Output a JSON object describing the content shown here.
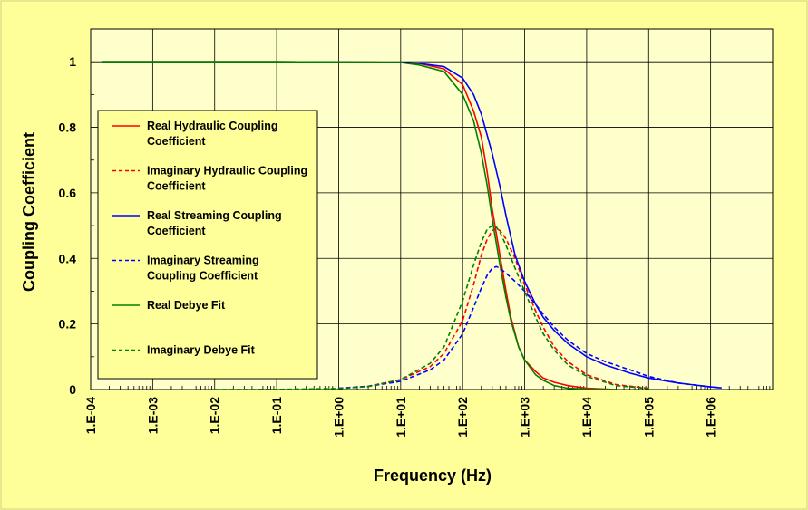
{
  "chart_data": {
    "type": "line",
    "title": "",
    "xlabel": "Frequency (Hz)",
    "ylabel": "Coupling Coefficient",
    "x_scale": "log",
    "xlim": [
      0.0001,
      10000000
    ],
    "ylim": [
      0,
      1.1
    ],
    "x_ticks": [
      0.0001,
      0.001,
      0.01,
      0.1,
      1,
      10,
      100,
      1000,
      10000,
      100000,
      1000000
    ],
    "x_tick_labels": [
      "1.E-04",
      "1.E-03",
      "1.E-02",
      "1.E-01",
      "1.E+00",
      "1.E+01",
      "1.E+02",
      "1.E+03",
      "1.E+04",
      "1.E+05",
      "1.E+06"
    ],
    "y_ticks": [
      0,
      0.2,
      0.4,
      0.6,
      0.8,
      1
    ],
    "y_tick_labels": [
      "0",
      "0.2",
      "0.4",
      "0.6",
      "0.8",
      "1"
    ],
    "grid": true,
    "legend_position": "left",
    "series": [
      {
        "name": "Real Hydraulic Coupling Coefficient",
        "color": "#ff0000",
        "dash": "solid",
        "x": [
          0.00015,
          0.001,
          0.1,
          10,
          20,
          50,
          100,
          150,
          200,
          250,
          300,
          400,
          500,
          600,
          800,
          1000,
          1500,
          2000,
          3000,
          5000,
          10000,
          30000
        ],
        "y": [
          1,
          1,
          1,
          0.998,
          0.995,
          0.978,
          0.93,
          0.85,
          0.77,
          0.66,
          0.55,
          0.41,
          0.3,
          0.22,
          0.13,
          0.09,
          0.055,
          0.035,
          0.022,
          0.012,
          0.004,
          0
        ]
      },
      {
        "name": "Imaginary Hydraulic Coupling Coefficient",
        "color": "#ff0000",
        "dash": "dashed",
        "x": [
          1,
          3,
          10,
          30,
          50,
          100,
          150,
          200,
          250,
          300,
          350,
          400,
          500,
          700,
          1000,
          1500,
          2000,
          3000,
          5000,
          10000,
          30000,
          100000
        ],
        "y": [
          0.004,
          0.01,
          0.03,
          0.07,
          0.11,
          0.21,
          0.32,
          0.41,
          0.46,
          0.485,
          0.49,
          0.485,
          0.46,
          0.4,
          0.32,
          0.24,
          0.19,
          0.13,
          0.085,
          0.045,
          0.015,
          0.004
        ]
      },
      {
        "name": "Real Streaming Coupling Coefficient",
        "color": "#0000ff",
        "dash": "solid",
        "x": [
          0.00015,
          0.001,
          0.1,
          10,
          20,
          50,
          100,
          150,
          200,
          300,
          400,
          500,
          700,
          1000,
          1500,
          2000,
          3000,
          5000,
          10000,
          20000,
          50000,
          100000,
          300000,
          1000000,
          1500000
        ],
        "y": [
          1,
          1,
          1,
          0.998,
          0.995,
          0.985,
          0.95,
          0.9,
          0.84,
          0.72,
          0.62,
          0.53,
          0.41,
          0.33,
          0.26,
          0.22,
          0.18,
          0.14,
          0.1,
          0.075,
          0.05,
          0.035,
          0.02,
          0.008,
          0.005
        ]
      },
      {
        "name": "Imaginary Streaming Coupling Coefficient",
        "color": "#0000ff",
        "dash": "dashed",
        "x": [
          1,
          3,
          10,
          30,
          50,
          100,
          150,
          200,
          250,
          300,
          350,
          400,
          500,
          700,
          1000,
          1500,
          2000,
          3000,
          5000,
          10000,
          20000,
          50000,
          100000,
          300000,
          1000000,
          1500000
        ],
        "y": [
          0.004,
          0.01,
          0.025,
          0.06,
          0.09,
          0.17,
          0.25,
          0.31,
          0.35,
          0.37,
          0.375,
          0.37,
          0.355,
          0.33,
          0.3,
          0.26,
          0.23,
          0.19,
          0.15,
          0.11,
          0.085,
          0.06,
          0.04,
          0.02,
          0.008,
          0.005
        ]
      },
      {
        "name": "Real Debye Fit",
        "color": "#008000",
        "dash": "solid",
        "x": [
          0.00015,
          0.001,
          0.1,
          10,
          20,
          50,
          100,
          150,
          200,
          250,
          300,
          400,
          500,
          600,
          800,
          1000,
          1500,
          2000,
          3000,
          5000,
          10000,
          30000
        ],
        "y": [
          1,
          1,
          1,
          0.998,
          0.99,
          0.97,
          0.9,
          0.82,
          0.72,
          0.62,
          0.52,
          0.38,
          0.28,
          0.21,
          0.13,
          0.09,
          0.045,
          0.028,
          0.012,
          0.004,
          0.001,
          0
        ]
      },
      {
        "name": "Imaginary Debye Fit",
        "color": "#008000",
        "dash": "dashed",
        "x": [
          0.01,
          0.1,
          1,
          3,
          10,
          30,
          50,
          100,
          150,
          200,
          250,
          300,
          350,
          400,
          500,
          700,
          1000,
          1500,
          2000,
          3000,
          5000,
          10000,
          30000,
          100000
        ],
        "y": [
          0,
          0.0005,
          0.003,
          0.009,
          0.03,
          0.08,
          0.13,
          0.27,
          0.38,
          0.45,
          0.49,
          0.5,
          0.495,
          0.48,
          0.44,
          0.37,
          0.3,
          0.22,
          0.17,
          0.12,
          0.075,
          0.04,
          0.012,
          0.003
        ]
      }
    ]
  }
}
